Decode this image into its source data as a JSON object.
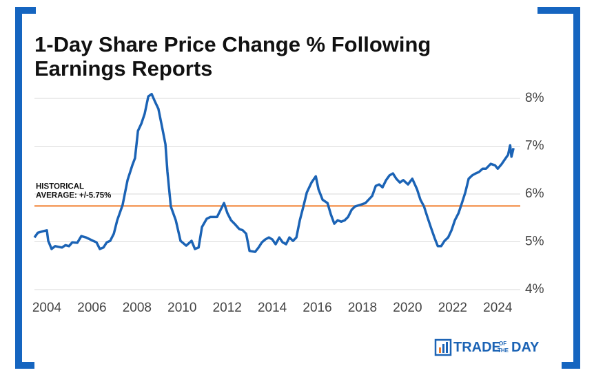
{
  "chart_data": {
    "type": "line",
    "title": [
      "1-Day Share Price Change % Following",
      "Earnings Reports"
    ],
    "x": [
      2003.45,
      2003.6,
      2003.82,
      2004.0,
      2004.06,
      2004.21,
      2004.37,
      2004.67,
      2004.83,
      2004.98,
      2005.13,
      2005.35,
      2005.53,
      2005.74,
      2006.05,
      2006.2,
      2006.35,
      2006.51,
      2006.66,
      2006.81,
      2006.97,
      2007.12,
      2007.36,
      2007.58,
      2007.79,
      2007.91,
      2008.04,
      2008.19,
      2008.34,
      2008.5,
      2008.65,
      2008.8,
      2008.95,
      2009.11,
      2009.26,
      2009.35,
      2009.5,
      2009.72,
      2009.93,
      2010.18,
      2010.42,
      2010.57,
      2010.73,
      2010.88,
      2011.09,
      2011.25,
      2011.55,
      2011.71,
      2011.86,
      2012.01,
      2012.17,
      2012.32,
      2012.53,
      2012.69,
      2012.84,
      2012.99,
      2013.24,
      2013.39,
      2013.54,
      2013.69,
      2013.85,
      2014.0,
      2014.15,
      2014.31,
      2014.46,
      2014.61,
      2014.76,
      2014.92,
      2015.07,
      2015.22,
      2015.38,
      2015.53,
      2015.74,
      2015.93,
      2016.05,
      2016.23,
      2016.45,
      2016.6,
      2016.75,
      2016.9,
      2017.06,
      2017.21,
      2017.36,
      2017.52,
      2017.67,
      2017.88,
      2018.13,
      2018.43,
      2018.59,
      2018.74,
      2018.89,
      2019.05,
      2019.2,
      2019.35,
      2019.5,
      2019.66,
      2019.81,
      2020.02,
      2020.21,
      2020.42,
      2020.57,
      2020.73,
      2020.88,
      2021.03,
      2021.19,
      2021.34,
      2021.49,
      2021.64,
      2021.8,
      2021.95,
      2022.1,
      2022.26,
      2022.41,
      2022.56,
      2022.71,
      2022.87,
      2023.02,
      2023.17,
      2023.33,
      2023.48,
      2023.69,
      2023.88,
      2024.0,
      2024.18,
      2024.31,
      2024.46,
      2024.55,
      2024.61,
      2024.7
    ],
    "series": [
      {
        "color": "#1b63b5",
        "values": [
          5.09,
          5.19,
          5.22,
          5.24,
          5.02,
          4.85,
          4.91,
          4.88,
          4.93,
          4.91,
          4.99,
          4.98,
          5.12,
          5.09,
          5.02,
          4.99,
          4.85,
          4.88,
          4.99,
          5.02,
          5.17,
          5.45,
          5.77,
          6.29,
          6.6,
          6.75,
          7.32,
          7.47,
          7.68,
          8.04,
          8.09,
          7.93,
          7.78,
          7.4,
          7.04,
          6.46,
          5.74,
          5.45,
          5.02,
          4.92,
          5.02,
          4.85,
          4.88,
          5.31,
          5.48,
          5.52,
          5.52,
          5.67,
          5.81,
          5.6,
          5.45,
          5.38,
          5.27,
          5.24,
          5.17,
          4.81,
          4.79,
          4.88,
          4.99,
          5.05,
          5.09,
          5.05,
          4.95,
          5.09,
          4.99,
          4.95,
          5.09,
          5.02,
          5.09,
          5.45,
          5.74,
          6.03,
          6.24,
          6.37,
          6.1,
          5.88,
          5.81,
          5.57,
          5.38,
          5.45,
          5.42,
          5.45,
          5.52,
          5.67,
          5.74,
          5.77,
          5.81,
          5.96,
          6.17,
          6.2,
          6.14,
          6.29,
          6.39,
          6.43,
          6.32,
          6.24,
          6.29,
          6.2,
          6.32,
          6.1,
          5.88,
          5.74,
          5.52,
          5.31,
          5.09,
          4.91,
          4.91,
          5.02,
          5.09,
          5.24,
          5.45,
          5.6,
          5.81,
          6.03,
          6.32,
          6.39,
          6.43,
          6.46,
          6.53,
          6.53,
          6.63,
          6.6,
          6.53,
          6.63,
          6.72,
          6.82,
          7.02,
          6.78,
          6.96
        ]
      }
    ],
    "xlim": [
      2003.45,
      2025.0
    ],
    "xticks": [
      2004,
      2006,
      2008,
      2010,
      2012,
      2014,
      2016,
      2018,
      2020,
      2022,
      2024
    ],
    "ylim": [
      4,
      8
    ],
    "yticks": [
      {
        "value": 4,
        "label": "4%"
      },
      {
        "value": 5,
        "label": "5%"
      },
      {
        "value": 6,
        "label": "6%"
      },
      {
        "value": 7,
        "label": "7%"
      },
      {
        "value": 8,
        "label": "8%"
      }
    ],
    "grid": true,
    "hline": {
      "value": 5.75,
      "color": "#f07c2a",
      "label": [
        "HISTORICAL",
        "AVERAGE: +/-5.75%"
      ]
    }
  },
  "branding": {
    "word1": "TRADE",
    "small": [
      "OF",
      "THE"
    ],
    "word2": "DAY"
  }
}
